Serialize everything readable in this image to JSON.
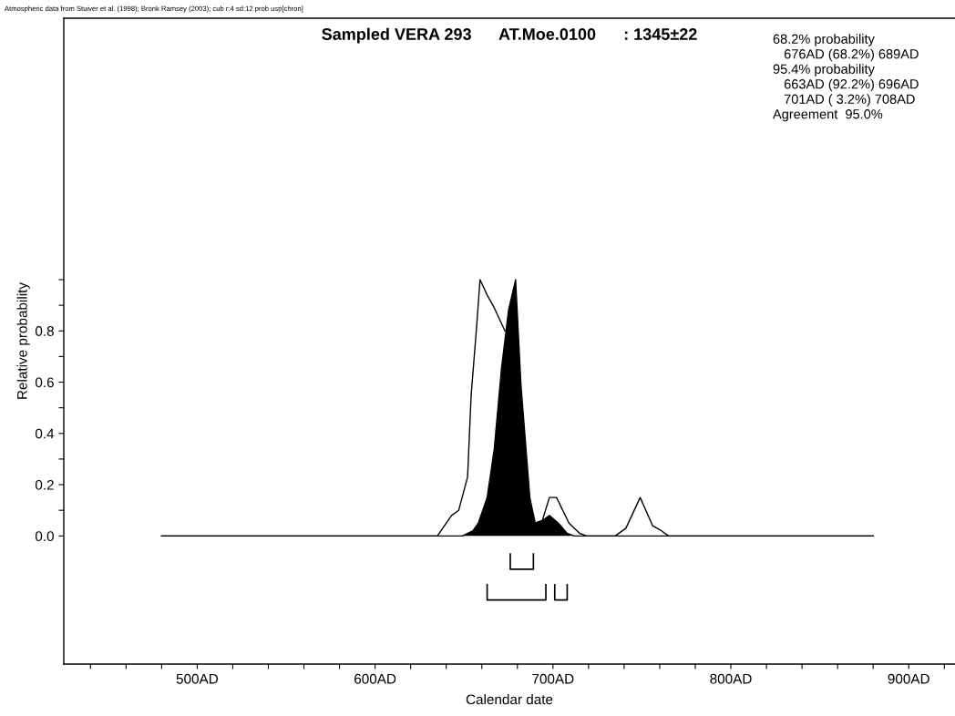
{
  "chart_data": {
    "type": "area",
    "title": "Sampled VERA 293      AT.Moe.0100      : 1345±22",
    "xlabel": "Calendar date",
    "ylabel": "Relative probability",
    "annotations": [
      "Atmospheric data from Stuiver et al. (1998); Bronk Ramsey (2003); cub r:4 sd:12 prob usp[chron]",
      "68.2% probability",
      "   676AD (68.2%) 689AD",
      "95.4% probability",
      "   663AD (92.2%) 696AD",
      "   701AD ( 3.2%) 708AD",
      "Agreement  95.0%"
    ],
    "series": [
      {
        "color": "#ffffff",
        "x": [
          480,
          635,
          643,
          647,
          652,
          654,
          657,
          659,
          663,
          667,
          673,
          680,
          690,
          694,
          698,
          702,
          709,
          715,
          719,
          735,
          741,
          749,
          756,
          761,
          765,
          880
        ],
        "values": [
          0,
          0,
          0.08,
          0.1,
          0.23,
          0.55,
          0.81,
          1.0,
          0.94,
          0.89,
          0.8,
          null,
          0.05,
          0.06,
          0.15,
          0.15,
          0.05,
          0.01,
          0,
          0,
          0.03,
          0.15,
          0.04,
          0.02,
          0,
          0
        ]
      },
      {
        "color": "#000000",
        "x": [
          480,
          649,
          655,
          658,
          663,
          667,
          671,
          675,
          679,
          682,
          687,
          690,
          694,
          698,
          703,
          708,
          712,
          880
        ],
        "values": [
          0,
          0,
          0.02,
          0.05,
          0.15,
          0.34,
          0.65,
          0.88,
          1.0,
          0.59,
          0.15,
          0.05,
          0.06,
          0.08,
          0.05,
          0.01,
          0,
          0
        ]
      },
      {
        "type": "line",
        "color": "#000000",
        "x": [
          676,
          676,
          689,
          689
        ],
        "values": [
          -0.07,
          -0.13,
          -0.13,
          -0.07
        ]
      },
      {
        "type": "line",
        "color": "#000000",
        "x": [
          663,
          663,
          696,
          696
        ],
        "values": [
          -0.19,
          -0.25,
          -0.25,
          -0.19
        ]
      },
      {
        "type": "line",
        "color": "#000000",
        "x": [
          701,
          701,
          708,
          708
        ],
        "values": [
          -0.19,
          -0.25,
          -0.25,
          -0.19
        ]
      }
    ],
    "xlim": [
      425,
      926
    ],
    "ylim": [
      -0.5,
      2.02
    ],
    "xticks": [
      {
        "value": 440,
        "label": null
      },
      {
        "value": 460,
        "label": null
      },
      {
        "value": 480,
        "label": null
      },
      {
        "value": 500,
        "label": "500AD"
      },
      {
        "value": 520,
        "label": null
      },
      {
        "value": 540,
        "label": null
      },
      {
        "value": 560,
        "label": null
      },
      {
        "value": 580,
        "label": null
      },
      {
        "value": 600,
        "label": "600AD"
      },
      {
        "value": 620,
        "label": null
      },
      {
        "value": 640,
        "label": null
      },
      {
        "value": 660,
        "label": null
      },
      {
        "value": 680,
        "label": null
      },
      {
        "value": 700,
        "label": "700AD"
      },
      {
        "value": 720,
        "label": null
      },
      {
        "value": 740,
        "label": null
      },
      {
        "value": 760,
        "label": null
      },
      {
        "value": 780,
        "label": null
      },
      {
        "value": 800,
        "label": "800AD"
      },
      {
        "value": 820,
        "label": null
      },
      {
        "value": 840,
        "label": null
      },
      {
        "value": 860,
        "label": null
      },
      {
        "value": 880,
        "label": null
      },
      {
        "value": 900,
        "label": "900AD"
      },
      {
        "value": 920,
        "label": null
      }
    ],
    "yticks": [
      {
        "value": 0,
        "label": "0.0"
      },
      {
        "value": 0.1,
        "label": null
      },
      {
        "value": 0.2,
        "label": "0.2"
      },
      {
        "value": 0.3,
        "label": null
      },
      {
        "value": 0.4,
        "label": "0.4"
      },
      {
        "value": 0.5,
        "label": null
      },
      {
        "value": 0.6,
        "label": "0.6"
      },
      {
        "value": 0.7,
        "label": null
      },
      {
        "value": 0.8,
        "label": "0.8"
      },
      {
        "value": 0.9,
        "label": null
      },
      {
        "value": 1.0,
        "label": null
      }
    ],
    "grid": false,
    "legend": false
  }
}
